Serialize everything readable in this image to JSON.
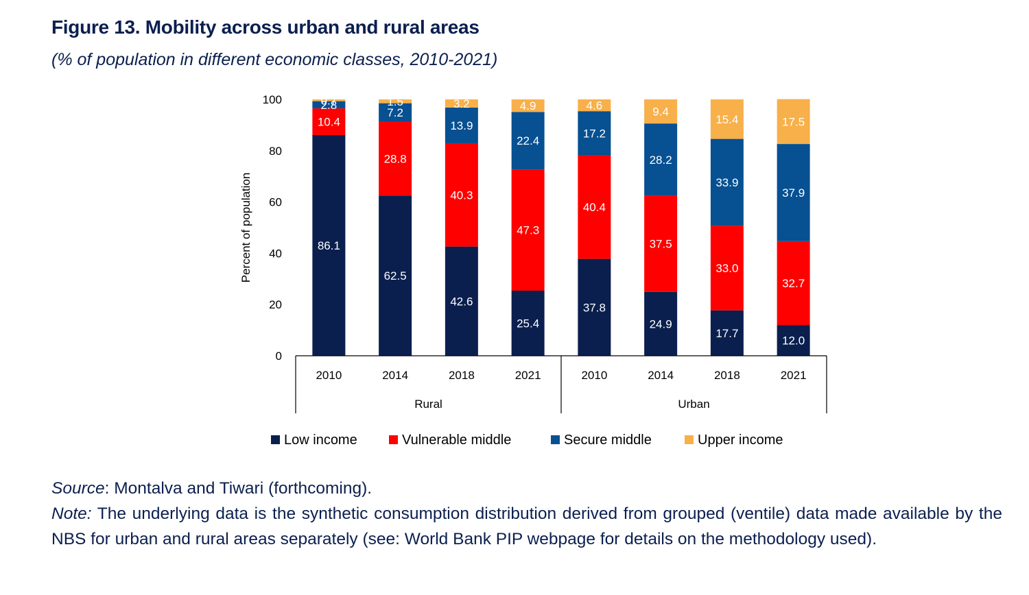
{
  "figure": {
    "title": "Figure 13.  Mobility across urban and rural areas",
    "subtitle": "(% of population in different economic classes, 2010-2021)"
  },
  "notes": {
    "source_label": "Source",
    "source_text": ": Montalva and Tiwari (forthcoming).",
    "note_label": "Note:",
    "note_text": " The underlying data is the synthetic consumption distribution derived from grouped (ventile) data made available by the NBS for urban and rural areas separately (see: World Bank PIP webpage for details on the methodology used)."
  },
  "chart_data": {
    "type": "bar",
    "stacked": true,
    "title": "Figure 13.  Mobility across urban and rural areas",
    "subtitle": "(% of population in different economic classes, 2010-2021)",
    "xlabel": "",
    "ylabel": "Percent of population",
    "ylim": [
      0,
      100
    ],
    "yticks": [
      0,
      20,
      40,
      60,
      80,
      100
    ],
    "grid": false,
    "legend_position": "bottom",
    "groups": [
      {
        "name": "Rural",
        "categories": [
          "2010",
          "2014",
          "2018",
          "2021"
        ]
      },
      {
        "name": "Urban",
        "categories": [
          "2010",
          "2014",
          "2018",
          "2021"
        ]
      }
    ],
    "categories": [
      "Rural 2010",
      "Rural 2014",
      "Rural 2018",
      "Rural 2021",
      "Urban 2010",
      "Urban 2014",
      "Urban 2018",
      "Urban 2021"
    ],
    "series": [
      {
        "name": "Low income",
        "color": "#0b1f4f",
        "values": [
          86.1,
          62.5,
          42.6,
          25.4,
          37.8,
          24.9,
          17.7,
          12.0
        ],
        "labels": [
          "86.1",
          "62.5",
          "42.6",
          "25.4",
          "37.8",
          "24.9",
          "17.7",
          "12.0"
        ]
      },
      {
        "name": "Vulnerable middle",
        "color": "#ff0000",
        "values": [
          10.4,
          28.8,
          40.3,
          47.3,
          40.4,
          37.5,
          33.0,
          32.7
        ],
        "labels": [
          "10.4",
          "28.8",
          "40.3",
          "47.3",
          "40.4",
          "37.5",
          "33.0",
          "32.7"
        ]
      },
      {
        "name": "Secure middle",
        "color": "#075091",
        "values": [
          2.8,
          7.2,
          13.9,
          22.4,
          17.2,
          28.2,
          33.9,
          37.9
        ],
        "labels": [
          "2.8",
          "7.2",
          "13.9",
          "22.4",
          "17.2",
          "28.2",
          "33.9",
          "37.9"
        ]
      },
      {
        "name": "Upper income",
        "color": "#f8b04a",
        "values": [
          0.7,
          1.5,
          3.2,
          4.9,
          4.6,
          9.4,
          15.4,
          17.5
        ],
        "labels": [
          "0.7",
          "1.5",
          "3.2",
          "4.9",
          "4.6",
          "9.4",
          "15.4",
          "17.5"
        ]
      }
    ]
  }
}
